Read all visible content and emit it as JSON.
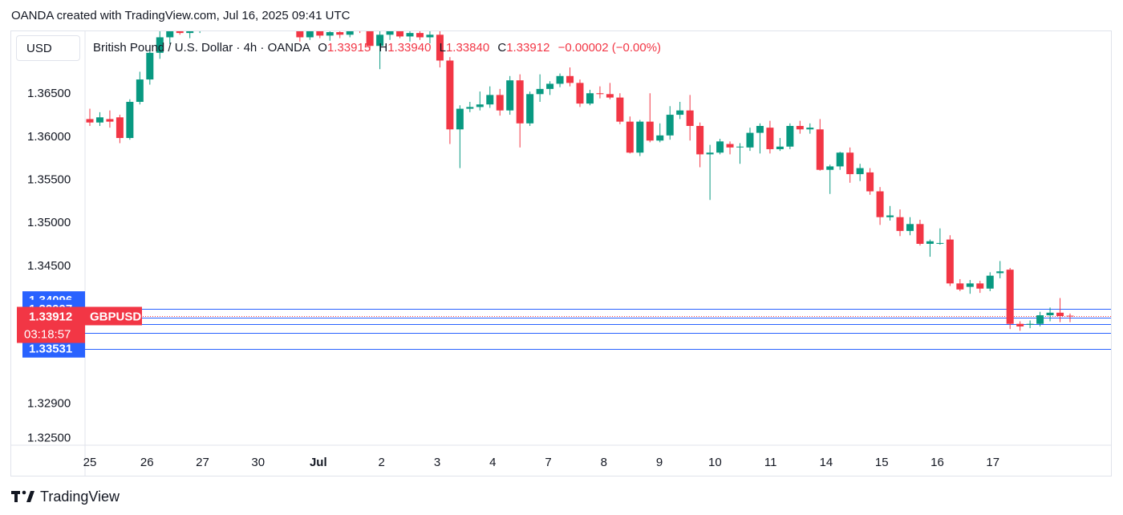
{
  "header": {
    "attribution": "OANDA created with TradingView.com, Jul 16, 2025 09:41 UTC"
  },
  "currency": "USD",
  "legend": {
    "title": "British Pound / U.S. Dollar · 4h · OANDA",
    "open_label": "O",
    "open": "1.33915",
    "high_label": "H",
    "high": "1.33940",
    "low_label": "L",
    "low": "1.33840",
    "close_label": "C",
    "close": "1.33912",
    "change": "−0.00002 (−0.00%)"
  },
  "footer": {
    "brand": "TradingView",
    "logo_icon": "tradingview-logo-icon"
  },
  "colors": {
    "up": "#089981",
    "down": "#f23645",
    "level": "#2962ff",
    "grid": "#e0e3eb",
    "text": "#131722"
  },
  "chart_data": {
    "type": "candlestick",
    "symbol": "GBPUSD",
    "timeframe": "4h",
    "y_ticks": [
      "1.36500",
      "1.36000",
      "1.35500",
      "1.35000",
      "1.34500",
      "1.32900",
      "1.32500"
    ],
    "x_labels": [
      "25",
      "26",
      "27",
      "30",
      "Jul",
      "2",
      "3",
      "4",
      "7",
      "8",
      "9",
      "10",
      "11",
      "14",
      "15",
      "16",
      "17"
    ],
    "ylim": [
      1.3241,
      1.3722
    ],
    "price_tag": {
      "value": "1.33912",
      "symbol": "GBPUSD",
      "countdown": "03:18:57"
    },
    "levels": [
      {
        "value": "1.34096",
        "y": 1.34096,
        "line": false
      },
      {
        "value": "1.33997",
        "y": 1.33997,
        "line": true
      },
      {
        "value": "1.33817",
        "y": 1.33817,
        "line": true
      },
      {
        "value": "1.33711",
        "y": 1.33711,
        "line": true
      },
      {
        "value": "1.33531",
        "y": 1.33531,
        "line": true
      }
    ],
    "extra_lines": [
      1.33893
    ],
    "candles": [
      {
        "x": 0.0,
        "o": 1.362,
        "h": 1.3632,
        "l": 1.3612,
        "c": 1.3616
      },
      {
        "x": 0.13,
        "o": 1.3616,
        "h": 1.3628,
        "l": 1.3612,
        "c": 1.3622
      },
      {
        "x": 0.26,
        "o": 1.362,
        "h": 1.363,
        "l": 1.361,
        "c": 1.3617
      },
      {
        "x": 0.39,
        "o": 1.3622,
        "h": 1.3625,
        "l": 1.3592,
        "c": 1.3598
      },
      {
        "x": 0.52,
        "o": 1.3598,
        "h": 1.3643,
        "l": 1.3596,
        "c": 1.364
      },
      {
        "x": 0.65,
        "o": 1.364,
        "h": 1.3675,
        "l": 1.3637,
        "c": 1.3666
      },
      {
        "x": 0.78,
        "o": 1.3666,
        "h": 1.37,
        "l": 1.366,
        "c": 1.3697
      },
      {
        "x": 0.91,
        "o": 1.3697,
        "h": 1.3735,
        "l": 1.369,
        "c": 1.3715
      },
      {
        "x": 1.04,
        "o": 1.3715,
        "h": 1.374,
        "l": 1.3707,
        "c": 1.3727
      },
      {
        "x": 1.17,
        "o": 1.3727,
        "h": 1.3736,
        "l": 1.3718,
        "c": 1.372
      },
      {
        "x": 1.3,
        "o": 1.372,
        "h": 1.3733,
        "l": 1.3714,
        "c": 1.3726
      },
      {
        "x": 1.43,
        "o": 1.3726,
        "h": 1.3738,
        "l": 1.372,
        "c": 1.3731
      },
      {
        "x": 1.56,
        "o": 1.3731,
        "h": 1.374,
        "l": 1.3725,
        "c": 1.3736
      },
      {
        "x": 1.69,
        "o": 1.3736,
        "h": 1.3742,
        "l": 1.3728,
        "c": 1.3733
      },
      {
        "x": 1.82,
        "o": 1.3733,
        "h": 1.3745,
        "l": 1.3729,
        "c": 1.374
      },
      {
        "x": 1.95,
        "o": 1.374,
        "h": 1.3748,
        "l": 1.3735,
        "c": 1.3738
      },
      {
        "x": 2.08,
        "o": 1.3738,
        "h": 1.375,
        "l": 1.373,
        "c": 1.3745
      },
      {
        "x": 2.21,
        "o": 1.3745,
        "h": 1.3752,
        "l": 1.3736,
        "c": 1.3741
      },
      {
        "x": 2.34,
        "o": 1.3741,
        "h": 1.375,
        "l": 1.3733,
        "c": 1.3735
      },
      {
        "x": 2.47,
        "o": 1.3735,
        "h": 1.3746,
        "l": 1.373,
        "c": 1.3742
      },
      {
        "x": 2.6,
        "o": 1.3742,
        "h": 1.375,
        "l": 1.3737,
        "c": 1.3738
      },
      {
        "x": 2.73,
        "o": 1.3738,
        "h": 1.3744,
        "l": 1.371,
        "c": 1.3715
      },
      {
        "x": 2.86,
        "o": 1.3715,
        "h": 1.3728,
        "l": 1.3712,
        "c": 1.3723
      },
      {
        "x": 2.99,
        "o": 1.3723,
        "h": 1.3728,
        "l": 1.3714,
        "c": 1.3717
      },
      {
        "x": 3.12,
        "o": 1.3717,
        "h": 1.3725,
        "l": 1.3711,
        "c": 1.3721
      },
      {
        "x": 3.25,
        "o": 1.3721,
        "h": 1.3725,
        "l": 1.3714,
        "c": 1.3718
      },
      {
        "x": 3.38,
        "o": 1.3718,
        "h": 1.3733,
        "l": 1.3715,
        "c": 1.3729
      },
      {
        "x": 3.51,
        "o": 1.3729,
        "h": 1.3732,
        "l": 1.372,
        "c": 1.3724
      },
      {
        "x": 3.64,
        "o": 1.3724,
        "h": 1.3728,
        "l": 1.37,
        "c": 1.3705
      },
      {
        "x": 3.77,
        "o": 1.3705,
        "h": 1.3725,
        "l": 1.3678,
        "c": 1.3718
      },
      {
        "x": 3.9,
        "o": 1.3718,
        "h": 1.373,
        "l": 1.3712,
        "c": 1.3722
      },
      {
        "x": 4.03,
        "o": 1.3722,
        "h": 1.373,
        "l": 1.3714,
        "c": 1.3716
      },
      {
        "x": 4.16,
        "o": 1.3716,
        "h": 1.3724,
        "l": 1.371,
        "c": 1.372
      },
      {
        "x": 4.29,
        "o": 1.372,
        "h": 1.3726,
        "l": 1.3712,
        "c": 1.3715
      },
      {
        "x": 4.42,
        "o": 1.3715,
        "h": 1.3722,
        "l": 1.3708,
        "c": 1.3718
      },
      {
        "x": 4.55,
        "o": 1.3718,
        "h": 1.373,
        "l": 1.368,
        "c": 1.3688
      },
      {
        "x": 4.68,
        "o": 1.3688,
        "h": 1.3692,
        "l": 1.3591,
        "c": 1.3608
      },
      {
        "x": 4.81,
        "o": 1.3608,
        "h": 1.3636,
        "l": 1.3563,
        "c": 1.3632
      },
      {
        "x": 4.94,
        "o": 1.3632,
        "h": 1.364,
        "l": 1.3628,
        "c": 1.3634
      },
      {
        "x": 5.07,
        "o": 1.3634,
        "h": 1.3652,
        "l": 1.363,
        "c": 1.3637
      },
      {
        "x": 5.2,
        "o": 1.3637,
        "h": 1.3658,
        "l": 1.3633,
        "c": 1.3648
      },
      {
        "x": 5.33,
        "o": 1.3648,
        "h": 1.3655,
        "l": 1.3624,
        "c": 1.363
      },
      {
        "x": 5.46,
        "o": 1.363,
        "h": 1.367,
        "l": 1.3625,
        "c": 1.3665
      },
      {
        "x": 5.59,
        "o": 1.3665,
        "h": 1.3672,
        "l": 1.3587,
        "c": 1.3615
      },
      {
        "x": 5.72,
        "o": 1.3615,
        "h": 1.3652,
        "l": 1.3612,
        "c": 1.3649
      },
      {
        "x": 5.85,
        "o": 1.3649,
        "h": 1.3672,
        "l": 1.364,
        "c": 1.3655
      },
      {
        "x": 5.98,
        "o": 1.3655,
        "h": 1.3664,
        "l": 1.3648,
        "c": 1.3661
      },
      {
        "x": 6.11,
        "o": 1.3661,
        "h": 1.3673,
        "l": 1.3657,
        "c": 1.367
      },
      {
        "x": 6.24,
        "o": 1.367,
        "h": 1.368,
        "l": 1.3658,
        "c": 1.3662
      },
      {
        "x": 6.37,
        "o": 1.3662,
        "h": 1.3666,
        "l": 1.3634,
        "c": 1.3638
      },
      {
        "x": 6.5,
        "o": 1.3638,
        "h": 1.3654,
        "l": 1.3636,
        "c": 1.365
      },
      {
        "x": 6.63,
        "o": 1.365,
        "h": 1.3658,
        "l": 1.3644,
        "c": 1.3649
      },
      {
        "x": 6.76,
        "o": 1.3649,
        "h": 1.3662,
        "l": 1.3643,
        "c": 1.3645
      },
      {
        "x": 6.89,
        "o": 1.3645,
        "h": 1.365,
        "l": 1.3614,
        "c": 1.3617
      },
      {
        "x": 7.02,
        "o": 1.3617,
        "h": 1.3623,
        "l": 1.358,
        "c": 1.3581
      },
      {
        "x": 7.15,
        "o": 1.3581,
        "h": 1.3619,
        "l": 1.3577,
        "c": 1.3617
      },
      {
        "x": 7.28,
        "o": 1.3617,
        "h": 1.365,
        "l": 1.3593,
        "c": 1.3595
      },
      {
        "x": 7.41,
        "o": 1.3595,
        "h": 1.3615,
        "l": 1.3593,
        "c": 1.3601
      },
      {
        "x": 7.54,
        "o": 1.3601,
        "h": 1.3635,
        "l": 1.3596,
        "c": 1.3625
      },
      {
        "x": 7.67,
        "o": 1.3625,
        "h": 1.364,
        "l": 1.362,
        "c": 1.363
      },
      {
        "x": 7.8,
        "o": 1.363,
        "h": 1.3648,
        "l": 1.3595,
        "c": 1.3612
      },
      {
        "x": 7.93,
        "o": 1.3612,
        "h": 1.3616,
        "l": 1.3564,
        "c": 1.3579
      },
      {
        "x": 8.06,
        "o": 1.3579,
        "h": 1.359,
        "l": 1.3526,
        "c": 1.3581
      },
      {
        "x": 8.19,
        "o": 1.3581,
        "h": 1.3597,
        "l": 1.3579,
        "c": 1.3594
      },
      {
        "x": 8.32,
        "o": 1.3591,
        "h": 1.3594,
        "l": 1.3579,
        "c": 1.3587
      },
      {
        "x": 8.45,
        "o": 1.3588,
        "h": 1.3592,
        "l": 1.3568,
        "c": 1.3588
      },
      {
        "x": 8.58,
        "o": 1.3587,
        "h": 1.361,
        "l": 1.3583,
        "c": 1.3604
      },
      {
        "x": 8.71,
        "o": 1.3604,
        "h": 1.3615,
        "l": 1.358,
        "c": 1.3612
      },
      {
        "x": 8.84,
        "o": 1.361,
        "h": 1.3618,
        "l": 1.358,
        "c": 1.3585
      },
      {
        "x": 8.97,
        "o": 1.3585,
        "h": 1.3598,
        "l": 1.3583,
        "c": 1.3588
      },
      {
        "x": 9.1,
        "o": 1.3588,
        "h": 1.3615,
        "l": 1.3585,
        "c": 1.3612
      },
      {
        "x": 9.23,
        "o": 1.3612,
        "h": 1.3618,
        "l": 1.3603,
        "c": 1.3608
      },
      {
        "x": 9.36,
        "o": 1.3608,
        "h": 1.3615,
        "l": 1.3603,
        "c": 1.361
      },
      {
        "x": 9.49,
        "o": 1.3608,
        "h": 1.362,
        "l": 1.356,
        "c": 1.3561
      },
      {
        "x": 9.62,
        "o": 1.3561,
        "h": 1.3567,
        "l": 1.3533,
        "c": 1.3565
      },
      {
        "x": 9.75,
        "o": 1.3565,
        "h": 1.3582,
        "l": 1.3561,
        "c": 1.3581
      },
      {
        "x": 9.88,
        "o": 1.3581,
        "h": 1.3587,
        "l": 1.3546,
        "c": 1.3556
      },
      {
        "x": 10.01,
        "o": 1.3556,
        "h": 1.3568,
        "l": 1.3548,
        "c": 1.3563
      },
      {
        "x": 10.14,
        "o": 1.3558,
        "h": 1.3563,
        "l": 1.3532,
        "c": 1.3536
      },
      {
        "x": 10.27,
        "o": 1.3536,
        "h": 1.3541,
        "l": 1.3497,
        "c": 1.3506
      },
      {
        "x": 10.4,
        "o": 1.3506,
        "h": 1.3519,
        "l": 1.3502,
        "c": 1.3508
      },
      {
        "x": 10.53,
        "o": 1.3506,
        "h": 1.3515,
        "l": 1.3484,
        "c": 1.349
      },
      {
        "x": 10.66,
        "o": 1.349,
        "h": 1.3506,
        "l": 1.3485,
        "c": 1.3498
      },
      {
        "x": 10.79,
        "o": 1.3498,
        "h": 1.3503,
        "l": 1.3473,
        "c": 1.3475
      },
      {
        "x": 10.92,
        "o": 1.3475,
        "h": 1.348,
        "l": 1.346,
        "c": 1.3478
      },
      {
        "x": 11.05,
        "o": 1.3476,
        "h": 1.3493,
        "l": 1.3474,
        "c": 1.3476
      },
      {
        "x": 11.18,
        "o": 1.348,
        "h": 1.3485,
        "l": 1.3426,
        "c": 1.3429
      },
      {
        "x": 11.31,
        "o": 1.3429,
        "h": 1.3434,
        "l": 1.342,
        "c": 1.3422
      },
      {
        "x": 11.44,
        "o": 1.3425,
        "h": 1.3433,
        "l": 1.3417,
        "c": 1.3429
      },
      {
        "x": 11.57,
        "o": 1.3429,
        "h": 1.3432,
        "l": 1.3418,
        "c": 1.3423
      },
      {
        "x": 11.7,
        "o": 1.3423,
        "h": 1.3442,
        "l": 1.342,
        "c": 1.3438
      },
      {
        "x": 11.83,
        "o": 1.3441,
        "h": 1.3455,
        "l": 1.3435,
        "c": 1.3443
      },
      {
        "x": 11.96,
        "o": 1.3445,
        "h": 1.3447,
        "l": 1.3376,
        "c": 1.3382
      },
      {
        "x": 12.09,
        "o": 1.3382,
        "h": 1.3385,
        "l": 1.3374,
        "c": 1.3379
      },
      {
        "x": 12.22,
        "o": 1.3381,
        "h": 1.3386,
        "l": 1.3377,
        "c": 1.3382
      },
      {
        "x": 12.35,
        "o": 1.3382,
        "h": 1.3396,
        "l": 1.3379,
        "c": 1.3392
      },
      {
        "x": 12.48,
        "o": 1.3392,
        "h": 1.3401,
        "l": 1.3385,
        "c": 1.3395
      },
      {
        "x": 12.61,
        "o": 1.3395,
        "h": 1.3412,
        "l": 1.3384,
        "c": 1.3391
      },
      {
        "x": 12.74,
        "o": 1.33915,
        "h": 1.3394,
        "l": 1.3384,
        "c": 1.33912
      }
    ],
    "x_label_slots": [
      0.0,
      0.74,
      1.46,
      2.18,
      2.96,
      3.78,
      4.5,
      5.22,
      5.94,
      6.66,
      7.38,
      8.1,
      8.82,
      9.54,
      10.26,
      10.98,
      11.7
    ],
    "x_slot_max": 12.7
  }
}
